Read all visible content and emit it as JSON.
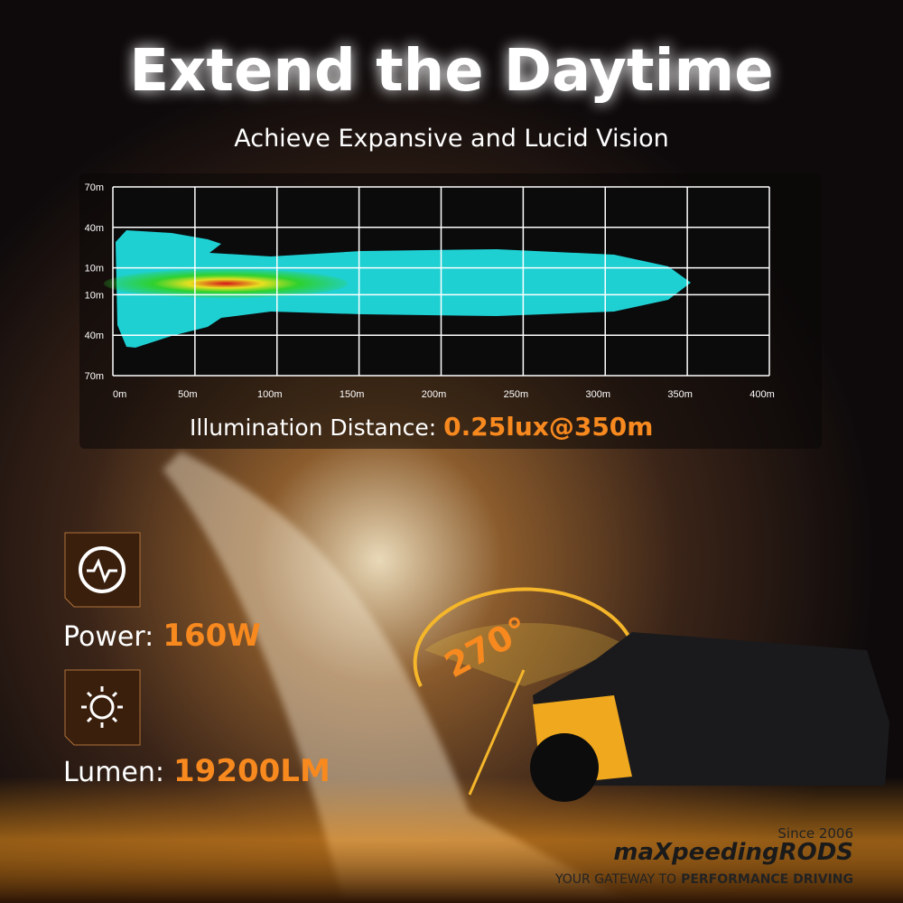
{
  "header": {
    "title": "Extend the Daytime",
    "subtitle": "Achieve Expansive and Lucid Vision"
  },
  "chart_data": {
    "type": "beam",
    "xlim": [
      0,
      400
    ],
    "xticks": [
      {
        "value": 0,
        "label": "0m"
      },
      {
        "value": 50,
        "label": "50m"
      },
      {
        "value": 100,
        "label": "100m"
      },
      {
        "value": 150,
        "label": "150m"
      },
      {
        "value": 200,
        "label": "200m"
      },
      {
        "value": 250,
        "label": "250m"
      },
      {
        "value": 300,
        "label": "300m"
      },
      {
        "value": 350,
        "label": "350m"
      },
      {
        "value": 400,
        "label": "400m"
      }
    ],
    "ylim": [
      -70,
      70
    ],
    "yticks": [
      {
        "value": 70,
        "label": "70m"
      },
      {
        "value": 40,
        "label": "40m"
      },
      {
        "value": 10,
        "label": "10m"
      },
      {
        "value": -10,
        "label": "10m"
      },
      {
        "value": -40,
        "label": "40m"
      },
      {
        "value": -70,
        "label": "70m"
      }
    ],
    "grid": true
  },
  "illumination": {
    "label": "Illumination Distance:",
    "value": "0.25lux@350m"
  },
  "specs": [
    {
      "label": "Power:",
      "value": "160W"
    },
    {
      "label": "Lumen:",
      "value": "19200LM"
    }
  ],
  "badge": "270°",
  "brand": {
    "since": "Since 2006",
    "name": "maXpeedingRODS",
    "tagline": "YOUR GATEWAY TO",
    "tagline_bold": "PERFORMANCE DRIVING"
  }
}
